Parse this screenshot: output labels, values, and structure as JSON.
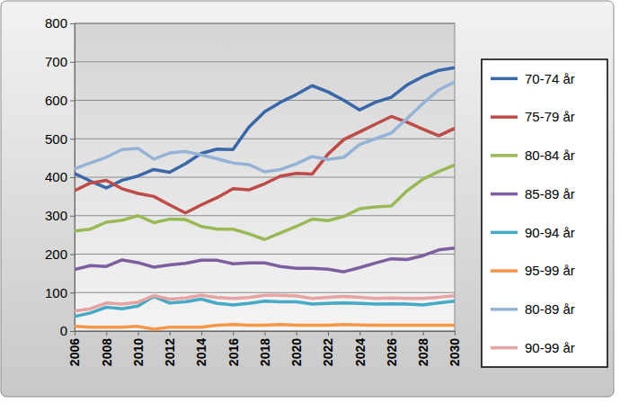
{
  "chart_data": {
    "type": "line",
    "x": [
      2006,
      2007,
      2008,
      2009,
      2010,
      2011,
      2012,
      2013,
      2014,
      2015,
      2016,
      2017,
      2018,
      2019,
      2020,
      2021,
      2022,
      2023,
      2024,
      2025,
      2026,
      2027,
      2028,
      2029,
      2030
    ],
    "xlim": [
      2006,
      2030
    ],
    "xticks": [
      2006,
      2008,
      2010,
      2012,
      2014,
      2016,
      2018,
      2020,
      2022,
      2024,
      2026,
      2028,
      2030
    ],
    "ylim": [
      0,
      800
    ],
    "yticks": [
      0,
      100,
      200,
      300,
      400,
      500,
      600,
      700,
      800
    ],
    "grid": true,
    "legend": "right",
    "series": [
      {
        "name": "70-74 år",
        "color": "#3a67a8",
        "values": [
          410,
          390,
          372,
          392,
          403,
          420,
          413,
          435,
          462,
          473,
          472,
          530,
          570,
          595,
          615,
          638,
          622,
          600,
          575,
          595,
          608,
          640,
          662,
          678,
          685
        ]
      },
      {
        "name": "75-79 år",
        "color": "#be4b48",
        "values": [
          365,
          385,
          392,
          370,
          358,
          350,
          328,
          307,
          328,
          347,
          370,
          367,
          383,
          403,
          410,
          408,
          460,
          498,
          518,
          538,
          558,
          543,
          525,
          508,
          527
        ]
      },
      {
        "name": "80-84 år",
        "color": "#98b954",
        "values": [
          260,
          265,
          283,
          288,
          300,
          282,
          291,
          290,
          272,
          265,
          265,
          253,
          238,
          255,
          272,
          291,
          287,
          298,
          318,
          323,
          325,
          365,
          395,
          415,
          432
        ]
      },
      {
        "name": "85-89 år",
        "color": "#7d5fa0",
        "values": [
          160,
          170,
          168,
          185,
          178,
          166,
          172,
          176,
          184,
          184,
          175,
          177,
          177,
          168,
          163,
          163,
          161,
          154,
          165,
          177,
          188,
          186,
          196,
          211,
          216
        ]
      },
      {
        "name": "90-94 år",
        "color": "#46aac5",
        "values": [
          38,
          47,
          62,
          58,
          65,
          90,
          73,
          76,
          83,
          72,
          68,
          72,
          78,
          76,
          76,
          70,
          72,
          73,
          72,
          70,
          71,
          70,
          68,
          73,
          78
        ]
      },
      {
        "name": "95-99 år",
        "color": "#f79646",
        "values": [
          12,
          10,
          10,
          10,
          12,
          5,
          10,
          10,
          10,
          15,
          17,
          15,
          15,
          17,
          15,
          15,
          15,
          17,
          16,
          15,
          15,
          15,
          15,
          15,
          15
        ]
      },
      {
        "name": "80-89 år",
        "color": "#95b3d7",
        "values": [
          422,
          437,
          452,
          472,
          475,
          447,
          463,
          467,
          458,
          448,
          437,
          433,
          414,
          420,
          435,
          454,
          446,
          452,
          485,
          500,
          515,
          553,
          592,
          627,
          648
        ]
      },
      {
        "name": "90-99 år",
        "color": "#e6a3a1",
        "values": [
          52,
          58,
          73,
          70,
          75,
          92,
          83,
          86,
          93,
          87,
          85,
          87,
          93,
          93,
          91,
          85,
          88,
          90,
          88,
          85,
          86,
          85,
          85,
          88,
          92
        ]
      }
    ]
  }
}
